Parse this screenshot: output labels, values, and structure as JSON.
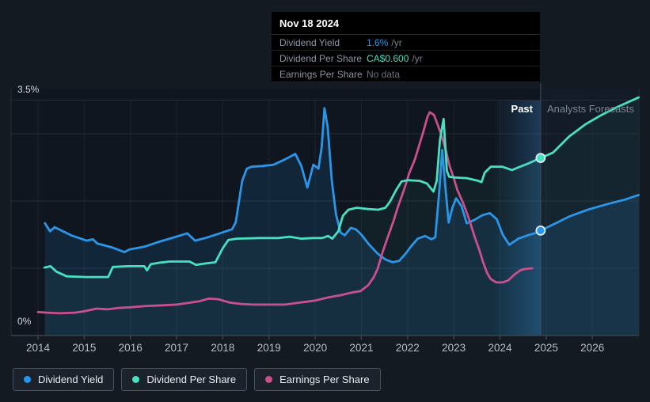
{
  "tooltip": {
    "date": "Nov 18 2024",
    "rows": [
      {
        "label": "Dividend Yield",
        "value": "1.6%",
        "unit": "/yr",
        "color": "#2196F3"
      },
      {
        "label": "Dividend Per Share",
        "value": "CA$0.600",
        "unit": "/yr",
        "color": "#47DFC1"
      },
      {
        "label": "Earnings Per Share",
        "value": "No data",
        "unit": "",
        "color": "#677180"
      }
    ]
  },
  "regions": {
    "past_label": "Past",
    "forecast_label": "Analysts Forecasts"
  },
  "legend": {
    "items": [
      {
        "label": "Dividend Yield",
        "color": "#2196F3"
      },
      {
        "label": "Dividend Per Share",
        "color": "#47DFC1"
      },
      {
        "label": "Earnings Per Share",
        "color": "#CC4E8E"
      }
    ]
  },
  "chart_data": {
    "type": "line",
    "title": "Dividend history and forecast",
    "y_axis": {
      "max_label": "3.5%",
      "min_label": "0%",
      "ylim": [
        0,
        3.5
      ],
      "unit": "%",
      "gridline_values": [
        3.5,
        3.0,
        2.0,
        1.0,
        0
      ]
    },
    "x_axis": {
      "ticks": [
        2014,
        2015,
        2016,
        2017,
        2018,
        2019,
        2020,
        2021,
        2022,
        2023,
        2024,
        2025,
        2026
      ],
      "range": [
        2013.42,
        2027.02
      ]
    },
    "divider_year": 2024.88,
    "past_band": [
      2023.85,
      2024.88
    ],
    "grid": true,
    "legend_position": "bottom",
    "series": [
      {
        "name": "Dividend Yield",
        "color": "#2B96E8",
        "fill": "rgba(45,140,225,0.14)",
        "marker": {
          "year": 2024.88,
          "value": 1.56
        },
        "points": [
          [
            2014.15,
            1.67
          ],
          [
            2014.26,
            1.55
          ],
          [
            2014.36,
            1.61
          ],
          [
            2014.72,
            1.49
          ],
          [
            2015.05,
            1.41
          ],
          [
            2015.19,
            1.43
          ],
          [
            2015.28,
            1.37
          ],
          [
            2015.6,
            1.31
          ],
          [
            2015.87,
            1.24
          ],
          [
            2015.98,
            1.28
          ],
          [
            2016.3,
            1.32
          ],
          [
            2016.6,
            1.39
          ],
          [
            2016.95,
            1.46
          ],
          [
            2017.23,
            1.52
          ],
          [
            2017.4,
            1.41
          ],
          [
            2017.62,
            1.45
          ],
          [
            2017.9,
            1.51
          ],
          [
            2018.2,
            1.58
          ],
          [
            2018.28,
            1.68
          ],
          [
            2018.42,
            2.3
          ],
          [
            2018.52,
            2.48
          ],
          [
            2018.62,
            2.51
          ],
          [
            2018.85,
            2.52
          ],
          [
            2019.1,
            2.54
          ],
          [
            2019.35,
            2.62
          ],
          [
            2019.57,
            2.7
          ],
          [
            2019.7,
            2.52
          ],
          [
            2019.83,
            2.2
          ],
          [
            2019.96,
            2.54
          ],
          [
            2020.07,
            2.48
          ],
          [
            2020.14,
            2.8
          ],
          [
            2020.2,
            3.38
          ],
          [
            2020.27,
            3.1
          ],
          [
            2020.36,
            2.3
          ],
          [
            2020.45,
            1.8
          ],
          [
            2020.55,
            1.53
          ],
          [
            2020.64,
            1.49
          ],
          [
            2020.77,
            1.6
          ],
          [
            2020.88,
            1.58
          ],
          [
            2021.0,
            1.5
          ],
          [
            2021.17,
            1.35
          ],
          [
            2021.35,
            1.22
          ],
          [
            2021.52,
            1.13
          ],
          [
            2021.68,
            1.09
          ],
          [
            2021.82,
            1.11
          ],
          [
            2021.96,
            1.22
          ],
          [
            2022.08,
            1.33
          ],
          [
            2022.22,
            1.44
          ],
          [
            2022.38,
            1.48
          ],
          [
            2022.52,
            1.43
          ],
          [
            2022.6,
            1.46
          ],
          [
            2022.68,
            2.1
          ],
          [
            2022.75,
            2.76
          ],
          [
            2022.82,
            2.2
          ],
          [
            2022.89,
            1.68
          ],
          [
            2022.97,
            1.9
          ],
          [
            2023.05,
            2.04
          ],
          [
            2023.17,
            1.92
          ],
          [
            2023.28,
            1.67
          ],
          [
            2023.45,
            1.72
          ],
          [
            2023.62,
            1.79
          ],
          [
            2023.78,
            1.82
          ],
          [
            2023.93,
            1.73
          ],
          [
            2024.06,
            1.5
          ],
          [
            2024.2,
            1.35
          ],
          [
            2024.4,
            1.44
          ],
          [
            2024.6,
            1.49
          ],
          [
            2024.75,
            1.52
          ],
          [
            2024.88,
            1.56
          ],
          [
            2025.15,
            1.65
          ],
          [
            2025.5,
            1.77
          ],
          [
            2025.9,
            1.87
          ],
          [
            2026.3,
            1.95
          ],
          [
            2026.7,
            2.02
          ],
          [
            2027.0,
            2.09
          ]
        ]
      },
      {
        "name": "Dividend Per Share",
        "color": "#49E0C2",
        "fill": "rgba(70,225,198,0.055)",
        "marker": {
          "year": 2024.88,
          "value": 2.64
        },
        "points": [
          [
            2014.14,
            1.01
          ],
          [
            2014.27,
            1.03
          ],
          [
            2014.4,
            0.95
          ],
          [
            2014.62,
            0.88
          ],
          [
            2015.05,
            0.87
          ],
          [
            2015.52,
            0.87
          ],
          [
            2015.62,
            1.02
          ],
          [
            2015.95,
            1.03
          ],
          [
            2016.3,
            1.03
          ],
          [
            2016.36,
            0.97
          ],
          [
            2016.44,
            1.06
          ],
          [
            2016.6,
            1.08
          ],
          [
            2016.85,
            1.1
          ],
          [
            2017.28,
            1.1
          ],
          [
            2017.42,
            1.05
          ],
          [
            2017.6,
            1.07
          ],
          [
            2017.84,
            1.09
          ],
          [
            2018.0,
            1.3
          ],
          [
            2018.12,
            1.42
          ],
          [
            2018.3,
            1.44
          ],
          [
            2018.8,
            1.45
          ],
          [
            2019.2,
            1.45
          ],
          [
            2019.45,
            1.47
          ],
          [
            2019.7,
            1.44
          ],
          [
            2019.95,
            1.45
          ],
          [
            2020.15,
            1.45
          ],
          [
            2020.28,
            1.48
          ],
          [
            2020.37,
            1.44
          ],
          [
            2020.5,
            1.55
          ],
          [
            2020.6,
            1.78
          ],
          [
            2020.72,
            1.87
          ],
          [
            2020.9,
            1.9
          ],
          [
            2021.15,
            1.88
          ],
          [
            2021.37,
            1.87
          ],
          [
            2021.52,
            1.9
          ],
          [
            2021.62,
            1.99
          ],
          [
            2021.75,
            2.16
          ],
          [
            2021.87,
            2.29
          ],
          [
            2022.0,
            2.31
          ],
          [
            2022.26,
            2.3
          ],
          [
            2022.42,
            2.26
          ],
          [
            2022.5,
            2.19
          ],
          [
            2022.56,
            2.14
          ],
          [
            2022.63,
            2.3
          ],
          [
            2022.7,
            2.9
          ],
          [
            2022.78,
            3.22
          ],
          [
            2022.85,
            2.45
          ],
          [
            2022.9,
            2.36
          ],
          [
            2023.03,
            2.35
          ],
          [
            2023.28,
            2.34
          ],
          [
            2023.53,
            2.3
          ],
          [
            2023.6,
            2.28
          ],
          [
            2023.67,
            2.42
          ],
          [
            2023.8,
            2.51
          ],
          [
            2024.05,
            2.51
          ],
          [
            2024.26,
            2.46
          ],
          [
            2024.4,
            2.5
          ],
          [
            2024.62,
            2.56
          ],
          [
            2024.88,
            2.64
          ],
          [
            2025.15,
            2.72
          ],
          [
            2025.5,
            2.96
          ],
          [
            2025.85,
            3.14
          ],
          [
            2026.2,
            3.28
          ],
          [
            2026.55,
            3.4
          ],
          [
            2027.0,
            3.54
          ]
        ]
      },
      {
        "name": "Earnings Per Share",
        "color": "#C9508E",
        "fill": null,
        "marker": null,
        "points": [
          [
            2014.0,
            0.35
          ],
          [
            2014.2,
            0.34
          ],
          [
            2014.46,
            0.33
          ],
          [
            2014.8,
            0.34
          ],
          [
            2015.0,
            0.36
          ],
          [
            2015.27,
            0.4
          ],
          [
            2015.5,
            0.39
          ],
          [
            2015.75,
            0.41
          ],
          [
            2016.0,
            0.42
          ],
          [
            2016.35,
            0.44
          ],
          [
            2016.7,
            0.45
          ],
          [
            2017.0,
            0.46
          ],
          [
            2017.3,
            0.49
          ],
          [
            2017.5,
            0.51
          ],
          [
            2017.7,
            0.55
          ],
          [
            2017.9,
            0.54
          ],
          [
            2018.15,
            0.49
          ],
          [
            2018.4,
            0.47
          ],
          [
            2018.66,
            0.46
          ],
          [
            2019.0,
            0.46
          ],
          [
            2019.35,
            0.46
          ],
          [
            2019.66,
            0.49
          ],
          [
            2020.0,
            0.52
          ],
          [
            2020.3,
            0.57
          ],
          [
            2020.55,
            0.6
          ],
          [
            2020.8,
            0.64
          ],
          [
            2020.98,
            0.66
          ],
          [
            2021.15,
            0.75
          ],
          [
            2021.27,
            0.87
          ],
          [
            2021.35,
            0.99
          ],
          [
            2021.45,
            1.22
          ],
          [
            2021.57,
            1.46
          ],
          [
            2021.69,
            1.69
          ],
          [
            2021.8,
            1.93
          ],
          [
            2021.92,
            2.16
          ],
          [
            2022.04,
            2.42
          ],
          [
            2022.16,
            2.62
          ],
          [
            2022.26,
            2.85
          ],
          [
            2022.35,
            3.05
          ],
          [
            2022.43,
            3.25
          ],
          [
            2022.48,
            3.32
          ],
          [
            2022.57,
            3.28
          ],
          [
            2022.66,
            3.12
          ],
          [
            2022.74,
            2.96
          ],
          [
            2022.83,
            2.75
          ],
          [
            2022.91,
            2.52
          ],
          [
            2023.0,
            2.34
          ],
          [
            2023.08,
            2.16
          ],
          [
            2023.19,
            1.99
          ],
          [
            2023.29,
            1.81
          ],
          [
            2023.37,
            1.65
          ],
          [
            2023.46,
            1.45
          ],
          [
            2023.55,
            1.28
          ],
          [
            2023.63,
            1.1
          ],
          [
            2023.72,
            0.93
          ],
          [
            2023.8,
            0.84
          ],
          [
            2023.92,
            0.79
          ],
          [
            2024.06,
            0.79
          ],
          [
            2024.18,
            0.82
          ],
          [
            2024.32,
            0.91
          ],
          [
            2024.44,
            0.97
          ],
          [
            2024.54,
            0.99
          ],
          [
            2024.7,
            1.0
          ]
        ]
      }
    ]
  }
}
